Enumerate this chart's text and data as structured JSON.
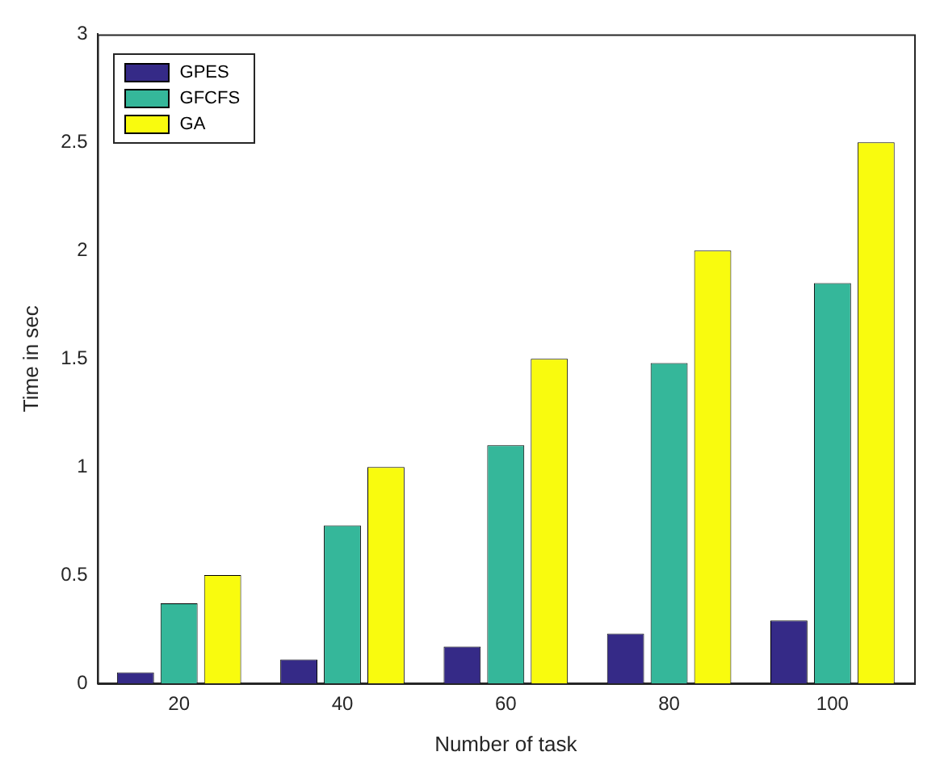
{
  "chart_data": {
    "type": "bar",
    "xlabel": "Number of task",
    "ylabel": "Time in sec",
    "categories": [
      "20",
      "40",
      "60",
      "80",
      "100"
    ],
    "series": [
      {
        "name": "GPES",
        "color": "#352a87",
        "values": [
          0.05,
          0.11,
          0.17,
          0.23,
          0.29
        ]
      },
      {
        "name": "GFCFS",
        "color": "#35b79a",
        "values": [
          0.37,
          0.73,
          1.1,
          1.48,
          1.85
        ]
      },
      {
        "name": "GA",
        "color": "#f9fb0e",
        "values": [
          0.5,
          1.0,
          1.5,
          2.0,
          2.5
        ]
      }
    ],
    "ylim": [
      0,
      3
    ],
    "yticks": [
      0,
      0.5,
      1,
      1.5,
      2,
      2.5,
      3
    ],
    "grid": false,
    "legend": "top left"
  }
}
